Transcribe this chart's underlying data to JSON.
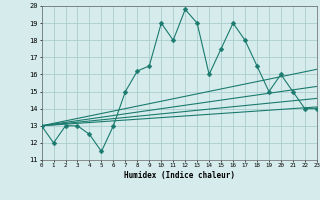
{
  "title": "",
  "xlabel": "Humidex (Indice chaleur)",
  "xlim": [
    0,
    23
  ],
  "ylim": [
    11,
    20
  ],
  "yticks": [
    11,
    12,
    13,
    14,
    15,
    16,
    17,
    18,
    19,
    20
  ],
  "xticks": [
    0,
    1,
    2,
    3,
    4,
    5,
    6,
    7,
    8,
    9,
    10,
    11,
    12,
    13,
    14,
    15,
    16,
    17,
    18,
    19,
    20,
    21,
    22,
    23
  ],
  "background_color": "#d6ecec",
  "grid_color": "#aacece",
  "line_color": "#1a7a6e",
  "main_line": {
    "x": [
      0,
      1,
      2,
      3,
      4,
      5,
      6,
      7,
      8,
      9,
      10,
      11,
      12,
      13,
      14,
      15,
      16,
      17,
      18,
      19,
      20,
      21,
      22,
      23
    ],
    "y": [
      13,
      12,
      13,
      13,
      12.5,
      11.5,
      13,
      15,
      16.2,
      16.5,
      19,
      18,
      19.8,
      19,
      16,
      17.5,
      19,
      18,
      16.5,
      15,
      16,
      15,
      14,
      14
    ]
  },
  "trend_lines": [
    {
      "x": [
        0,
        23
      ],
      "y": [
        13,
        14.1
      ]
    },
    {
      "x": [
        0,
        23
      ],
      "y": [
        13,
        14.6
      ]
    },
    {
      "x": [
        0,
        23
      ],
      "y": [
        13,
        15.3
      ]
    },
    {
      "x": [
        0,
        23
      ],
      "y": [
        13,
        16.3
      ]
    }
  ]
}
